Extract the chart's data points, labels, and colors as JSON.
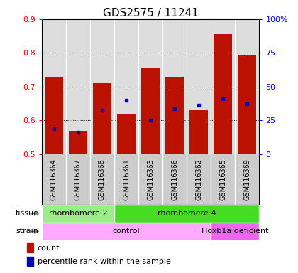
{
  "title": "GDS2575 / 11241",
  "samples": [
    "GSM116364",
    "GSM116367",
    "GSM116368",
    "GSM116361",
    "GSM116363",
    "GSM116366",
    "GSM116362",
    "GSM116365",
    "GSM116369"
  ],
  "bar_bottom": 0.5,
  "bar_tops": [
    0.73,
    0.57,
    0.71,
    0.62,
    0.755,
    0.73,
    0.63,
    0.855,
    0.795
  ],
  "blue_dots": [
    0.575,
    0.565,
    0.63,
    0.66,
    0.6,
    0.635,
    0.645,
    0.665,
    0.65
  ],
  "ylim": [
    0.5,
    0.9
  ],
  "yticks_left": [
    0.5,
    0.6,
    0.7,
    0.8,
    0.9
  ],
  "yticks_right": [
    0,
    25,
    50,
    75,
    100
  ],
  "bar_color": "#bb1100",
  "dot_color": "#0000bb",
  "tissue_groups": [
    {
      "label": "rhombomere 2",
      "start": 0,
      "end": 3,
      "color": "#99ee88"
    },
    {
      "label": "rhombomere 4",
      "start": 3,
      "end": 9,
      "color": "#44dd22"
    }
  ],
  "strain_groups": [
    {
      "label": "control",
      "start": 0,
      "end": 7,
      "color": "#ffaaff"
    },
    {
      "label": "Hoxb1a deficient",
      "start": 7,
      "end": 9,
      "color": "#ee66ee"
    }
  ],
  "legend_count_label": "count",
  "legend_pct_label": "percentile rank within the sample",
  "tissue_label": "tissue",
  "strain_label": "strain",
  "background_color": "#ffffff",
  "plot_bg_color": "#dddddd",
  "sample_bg_color": "#cccccc",
  "title_fontsize": 11,
  "tick_fontsize": 8,
  "label_fontsize": 8,
  "sample_fontsize": 7
}
